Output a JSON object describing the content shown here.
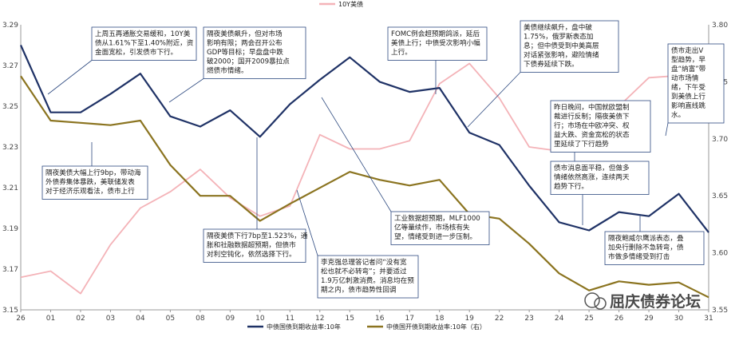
{
  "chart_data": {
    "type": "line",
    "categories": [
      "26",
      "01",
      "02",
      "03",
      "04",
      "05",
      "08",
      "09",
      "10",
      "11",
      "12",
      "15",
      "16",
      "17",
      "18",
      "19",
      "22",
      "23",
      "24",
      "25",
      "26",
      "29",
      "30",
      "31"
    ],
    "y_left_lim": [
      3.15,
      3.29
    ],
    "y_left_ticks": [
      "3.15",
      "3.17",
      "3.19",
      "3.21",
      "3.23",
      "3.25",
      "3.27",
      "3.29"
    ],
    "y_right_lim": [
      3.55,
      3.8
    ],
    "y_right_ticks": [
      "3.55",
      "3.60",
      "3.65",
      "3.70",
      "3.75",
      "3.80"
    ],
    "grid": false,
    "series": [
      {
        "name": "中债国债到期收益率:10年",
        "axis": "left",
        "color": "#1f3266",
        "values": [
          3.28,
          3.247,
          3.247,
          3.256,
          3.266,
          3.245,
          3.24,
          3.248,
          3.235,
          3.251,
          3.263,
          3.274,
          3.262,
          3.257,
          3.259,
          3.237,
          3.231,
          3.211,
          3.193,
          3.189,
          3.198,
          3.196,
          3.207,
          3.188
        ]
      },
      {
        "name": "中债国开债到期收益率:10年（右）",
        "axis": "right",
        "color": "#8b7420",
        "values": [
          3.755,
          3.716,
          3.714,
          3.712,
          3.716,
          3.677,
          3.65,
          3.65,
          3.628,
          3.643,
          3.657,
          3.671,
          3.664,
          3.659,
          3.664,
          3.634,
          3.63,
          3.608,
          3.582,
          3.567,
          3.575,
          3.572,
          3.574,
          3.561
        ]
      },
      {
        "name": "10Y美债",
        "axis": "left",
        "color": "#f4b3b8",
        "values": [
          3.166,
          3.169,
          3.158,
          3.182,
          3.2,
          3.208,
          3.219,
          3.205,
          3.196,
          3.201,
          3.236,
          3.229,
          3.229,
          3.233,
          3.261,
          3.271,
          3.254,
          3.23,
          3.228,
          3.231,
          3.25,
          3.264,
          3.265,
          3.27
        ]
      }
    ],
    "legend": {
      "placement": "top-center and bottom-center"
    },
    "annotations": [
      {
        "lines": [
          "上周五再通胀交易缓和，10Y美",
          "债从1.61%下至1.40%附近，资",
          "金面宽松，引发债市下行。"
        ]
      },
      {
        "lines": [
          "隔夜美债飙升，但对市场",
          "影响有限；两会召开公布",
          "GDP等目标；早盘盘中跌",
          "破2000；国开2009暴拉点",
          "燃债市情绪。"
        ]
      },
      {
        "lines": [
          "FOMC例会超预期鸽派，延后",
          "美债上行；中债受次影响小幅",
          "上行。"
        ]
      },
      {
        "lines": [
          "美债继续飙升，盘中破",
          "1.75%，俄罗斯表态加",
          "息；但中债受到中美高层",
          "对话紧张影响，避险情绪",
          "下债券延续下跌。"
        ]
      },
      {
        "lines": [
          "债市走出V",
          "型趋势，早",
          "盘“纳富”带",
          "动市场情",
          "绪，下午受",
          "到美债上行",
          "影响直线跳",
          "水。"
        ]
      },
      {
        "lines": [
          "昨日晚间，中国就欧盟制",
          "裁进行反制；隔夜美债下",
          "行；市场在中欧冲突、权",
          "益大跌、资金宽松的状态",
          "里延续了下行趋势"
        ]
      },
      {
        "lines": [
          "隔夜美债大幅上行9bp，带动海",
          "外债券集体暴跌，美联储发表",
          "对于经济乐观看法，债市上行"
        ]
      },
      {
        "lines": [
          "债市消息面平稳，但做多",
          "情绪依然高涨，连续两天",
          "趋势下行。"
        ]
      },
      {
        "lines": [
          "隔夜美债下行7bp至1.523%，通",
          "胀和社融数据超预期，但债市",
          "对利空钝化，依然选择下行。"
        ]
      },
      {
        "lines": [
          "工业数据超预期，MLF1000",
          "亿等量续作，市场核有失",
          "望，情绪受到进一步压制。"
        ]
      },
      {
        "lines": [
          "隔夜鲍威尔鹰派表态，叠",
          "加央行删除不急转弯，债",
          "市做多情绪受到打击"
        ]
      },
      {
        "lines": [
          "李克强总理答记者问“没有宽",
          "松也就不必转弯”；并要适过",
          "1.9万亿刺激消费。消息均在预",
          "期之内，债市趋势性回调"
        ]
      }
    ],
    "watermark": "屈庆债券论坛"
  }
}
